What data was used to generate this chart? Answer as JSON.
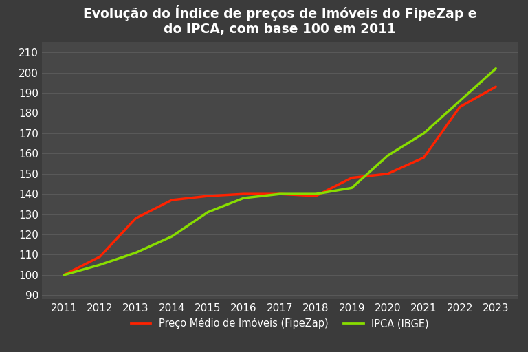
{
  "title": "Evolução do Índice de preços de Imóveis do FipeZap e\ndo IPCA, com base 100 em 2011",
  "background_color": "#3b3b3b",
  "axes_bg_color": "#474747",
  "grid_color": "#595959",
  "text_color": "#ffffff",
  "years": [
    2011,
    2012,
    2013,
    2014,
    2015,
    2016,
    2017,
    2018,
    2019,
    2020,
    2021,
    2022,
    2023
  ],
  "fipezap": [
    100,
    109,
    128,
    137,
    139,
    140,
    140,
    139,
    148,
    150,
    158,
    183,
    193
  ],
  "ipca": [
    100,
    105,
    111,
    119,
    131,
    138,
    140,
    140,
    143,
    159,
    170,
    186,
    202
  ],
  "fipezap_color": "#ff2200",
  "ipca_color": "#88dd00",
  "ylim": [
    88,
    215
  ],
  "yticks": [
    90,
    100,
    110,
    120,
    130,
    140,
    150,
    160,
    170,
    180,
    190,
    200,
    210
  ],
  "line_width": 2.5,
  "legend_fipezap": "Preço Médio de Imóveis (FipeZap)",
  "legend_ipca": "IPCA (IBGE)",
  "title_fontsize": 13.5,
  "tick_fontsize": 11,
  "legend_fontsize": 10.5
}
